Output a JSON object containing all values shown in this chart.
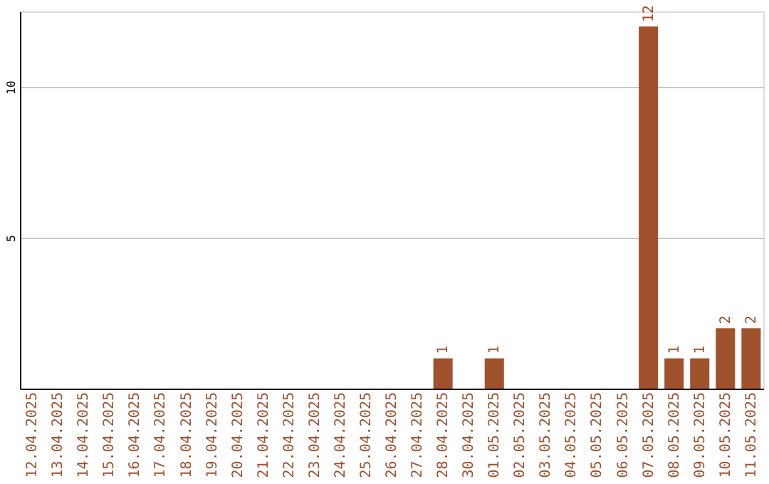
{
  "chart_data": {
    "type": "bar",
    "categories": [
      "12.04.2025",
      "13.04.2025",
      "14.04.2025",
      "15.04.2025",
      "16.04.2025",
      "17.04.2025",
      "18.04.2025",
      "19.04.2025",
      "20.04.2025",
      "21.04.2025",
      "22.04.2025",
      "23.04.2025",
      "24.04.2025",
      "25.04.2025",
      "26.04.2025",
      "27.04.2025",
      "28.04.2025",
      "30.04.2025",
      "01.05.2025",
      "02.05.2025",
      "03.05.2025",
      "04.05.2025",
      "05.05.2025",
      "06.05.2025",
      "07.05.2025",
      "08.05.2025",
      "09.05.2025",
      "10.05.2025",
      "11.05.2025"
    ],
    "values": [
      0,
      0,
      0,
      0,
      0,
      0,
      0,
      0,
      0,
      0,
      0,
      0,
      0,
      0,
      0,
      0,
      1,
      0,
      1,
      0,
      0,
      0,
      0,
      0,
      12,
      1,
      1,
      2,
      2
    ],
    "value_labels": [
      null,
      null,
      null,
      null,
      null,
      null,
      null,
      null,
      null,
      null,
      null,
      null,
      null,
      null,
      null,
      null,
      "1",
      null,
      "1",
      null,
      null,
      null,
      null,
      null,
      "12",
      "1",
      "1",
      "2",
      "2"
    ],
    "color": "#a0522d",
    "ylim": [
      0,
      12.5
    ],
    "yticks": [
      5,
      10
    ],
    "grid": "y"
  }
}
